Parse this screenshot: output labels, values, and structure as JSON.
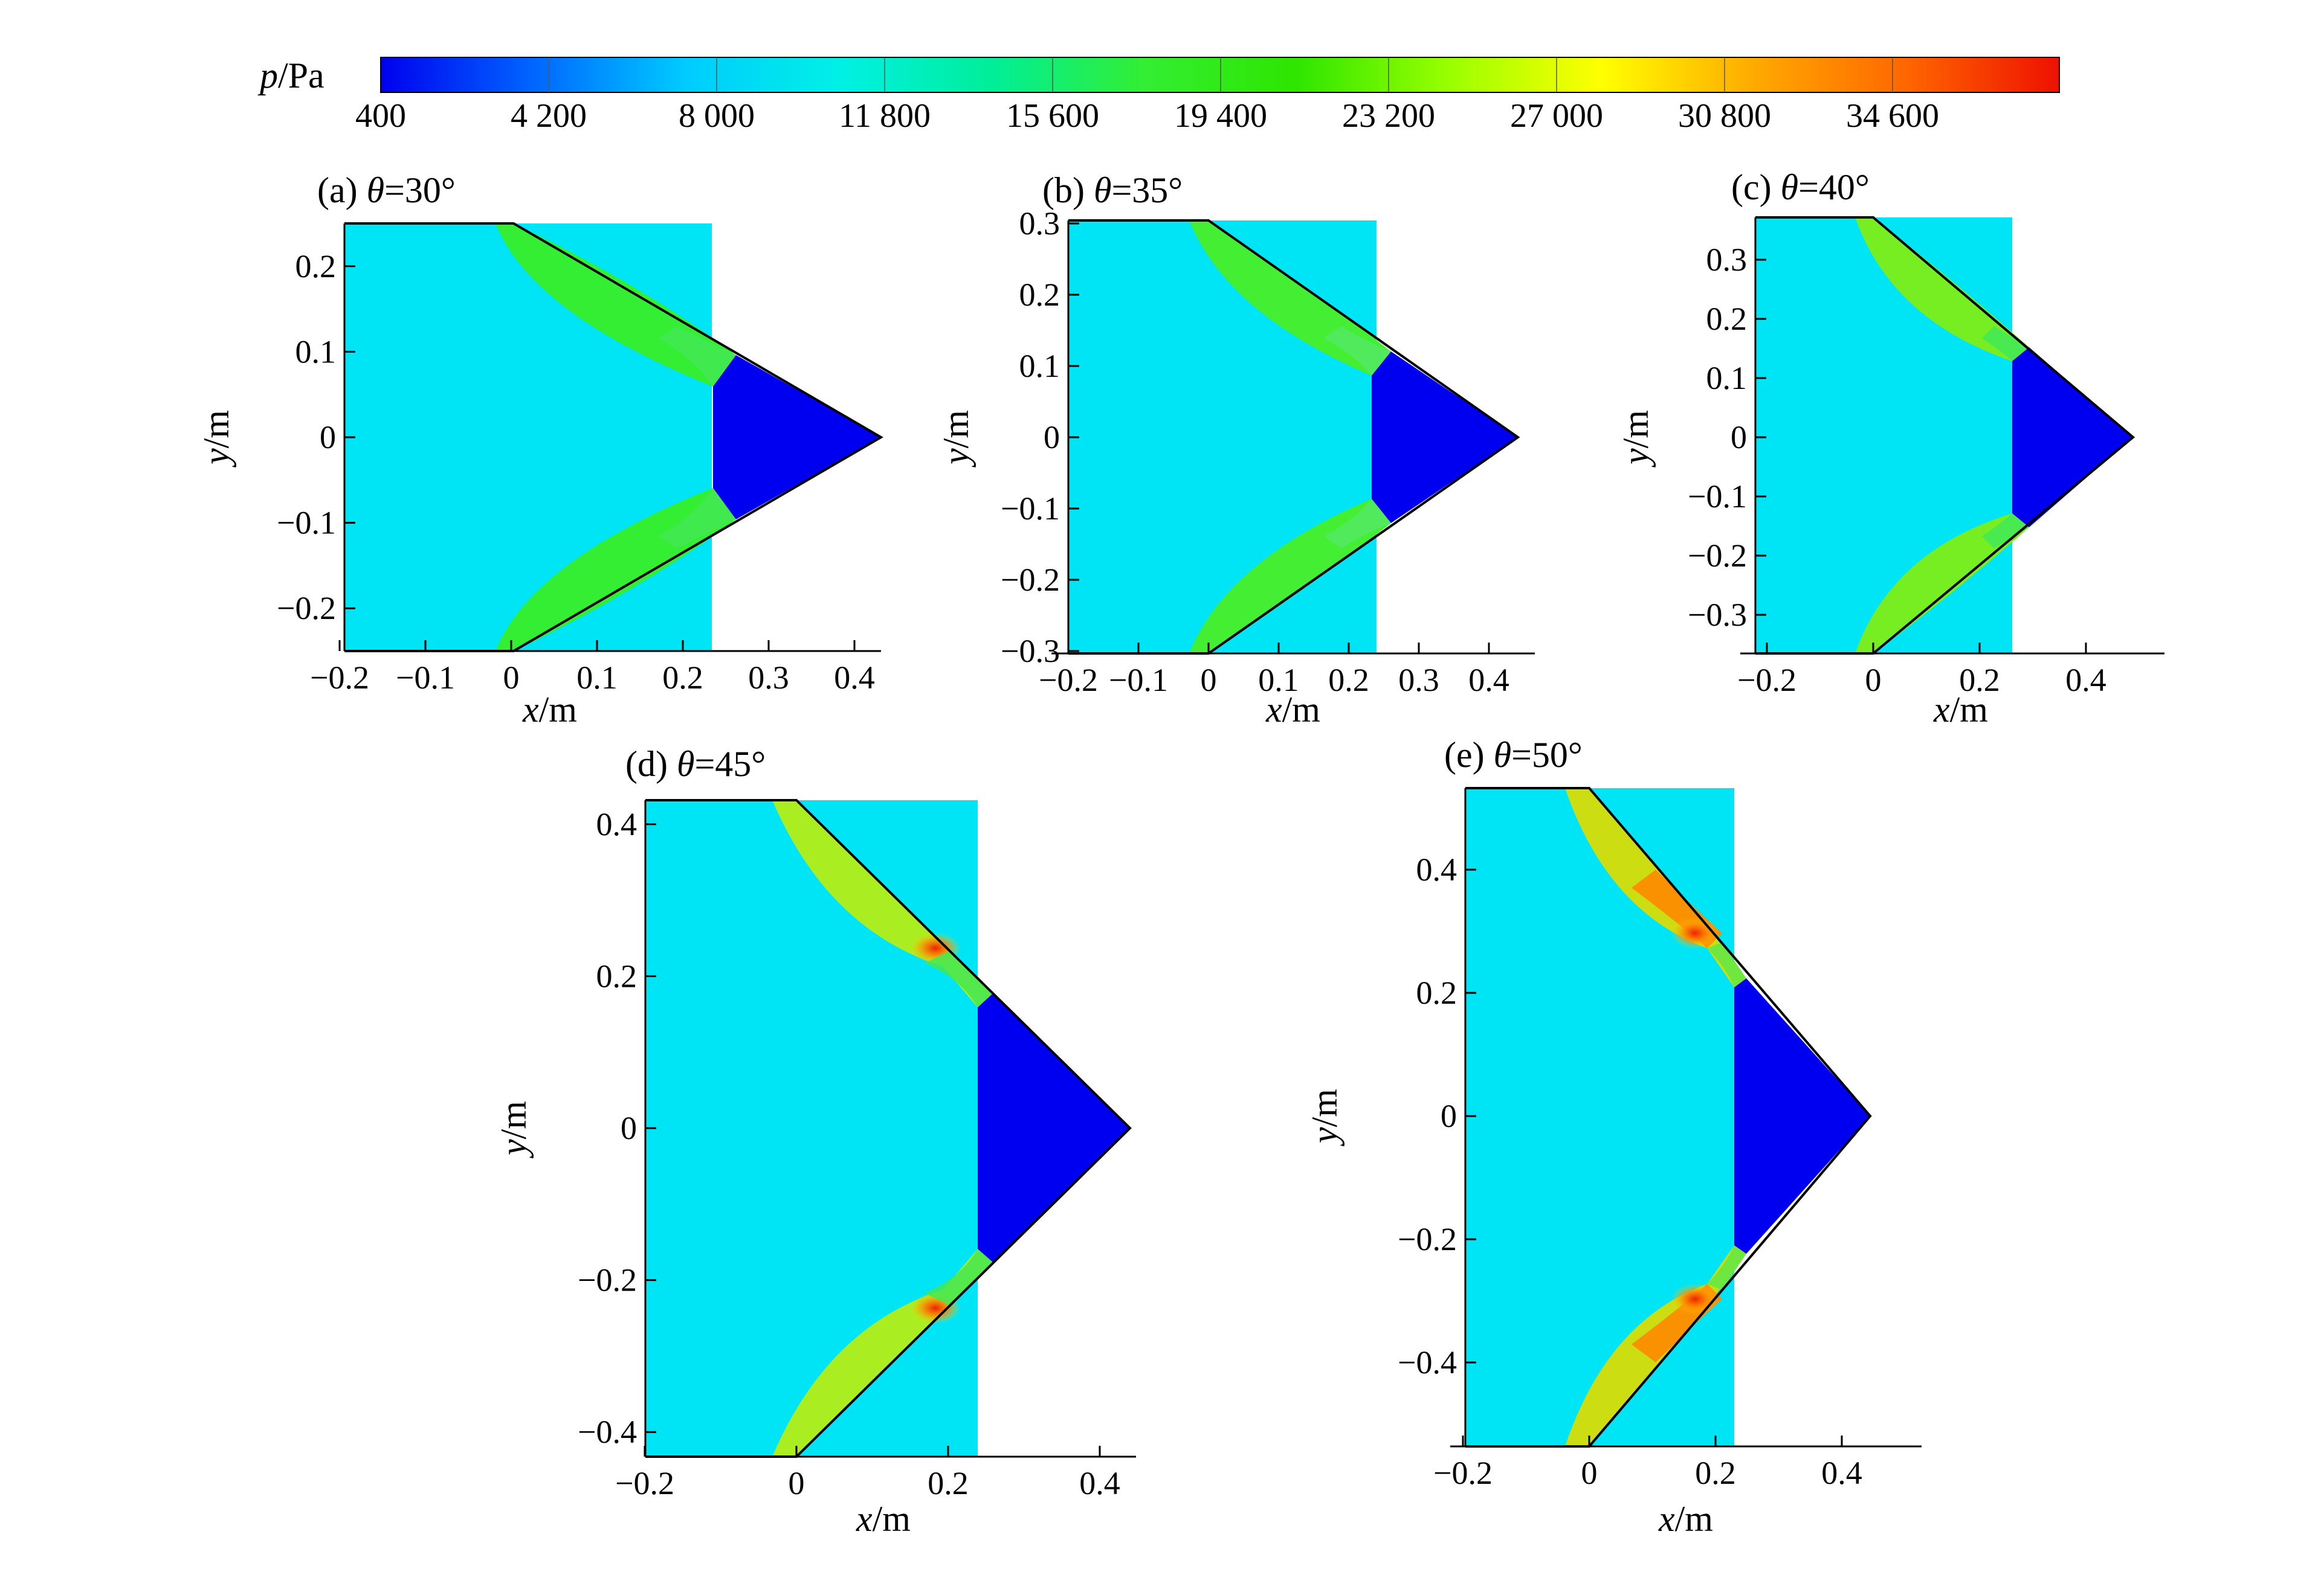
{
  "colorbar": {
    "title_var": "p",
    "title_unit": "/Pa",
    "tick_labels": [
      "400",
      "4 200",
      "8 000",
      "11 800",
      "15 600",
      "19 400",
      "23 200",
      "27 000",
      "30 800",
      "34 600"
    ],
    "colors": [
      "#0000ee",
      "#0066ff",
      "#00ccff",
      "#00f0e6",
      "#00ee99",
      "#33ee33",
      "#2ee600",
      "#99ff00",
      "#ffff00",
      "#ffaa00",
      "#ff6600",
      "#ee1100"
    ]
  },
  "colors": {
    "freestream": "#00e5f5",
    "expansion": "#0000f0",
    "shock_low": "#33ee33",
    "shock_mid": "#99ee22",
    "shock_high": "#ee2200"
  },
  "panels": [
    {
      "id": "a",
      "prefix": "(a) ",
      "theta_symbol": "θ",
      "theta_value": "=30°",
      "x_label_var": "x",
      "x_label_unit": "/m",
      "y_label_var": "y",
      "y_label_unit": "/m",
      "x_ticks": [
        "−0.2",
        "−0.1",
        "0",
        "0.1",
        "0.2",
        "0.3",
        "0.4"
      ],
      "y_ticks": [
        "0.2",
        "0.1",
        "0",
        "−0.1",
        "−0.2"
      ],
      "shock_color": "#33ee33"
    },
    {
      "id": "b",
      "prefix": "(b) ",
      "theta_symbol": "θ",
      "theta_value": "=35°",
      "x_label_var": "x",
      "x_label_unit": "/m",
      "y_label_var": "y",
      "y_label_unit": "/m",
      "x_ticks": [
        "−0.2",
        "−0.1",
        "0",
        "0.1",
        "0.2",
        "0.3",
        "0.4"
      ],
      "y_ticks": [
        "0.3",
        "0.2",
        "0.1",
        "0",
        "−0.1",
        "−0.2",
        "−0.3"
      ],
      "shock_color": "#44ee33"
    },
    {
      "id": "c",
      "prefix": "(c) ",
      "theta_symbol": "θ",
      "theta_value": "=40°",
      "x_label_var": "x",
      "x_label_unit": "/m",
      "y_label_var": "y",
      "y_label_unit": "/m",
      "x_ticks": [
        "−0.2",
        "0",
        "0.2",
        "0.4"
      ],
      "y_ticks": [
        "0.3",
        "0.2",
        "0.1",
        "0",
        "−0.1",
        "−0.2",
        "−0.3"
      ],
      "shock_color": "#77ee22"
    },
    {
      "id": "d",
      "prefix": "(d) ",
      "theta_symbol": "θ",
      "theta_value": "=45°",
      "x_label_var": "x",
      "x_label_unit": "/m",
      "y_label_var": "y",
      "y_label_unit": "/m",
      "x_ticks": [
        "−0.2",
        "0",
        "0.2",
        "0.4"
      ],
      "y_ticks": [
        "0.4",
        "0.2",
        "0",
        "−0.2",
        "−0.4"
      ],
      "shock_color": "#aaee22"
    },
    {
      "id": "e",
      "prefix": "(e) ",
      "theta_symbol": "θ",
      "theta_value": "=50°",
      "x_label_var": "x",
      "x_label_unit": "/m",
      "y_label_var": "y",
      "y_label_unit": "/m",
      "x_ticks": [
        "−0.2",
        "0",
        "0.2",
        "0.4"
      ],
      "y_ticks": [
        "0.4",
        "0.2",
        "0",
        "−0.2",
        "−0.4"
      ],
      "shock_color": "#ccdd11"
    }
  ]
}
